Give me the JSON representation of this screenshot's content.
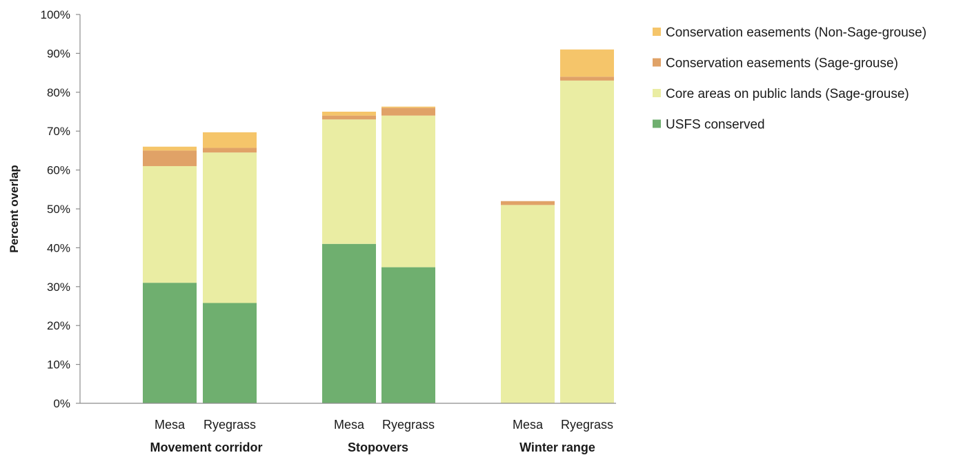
{
  "chart_data": {
    "type": "bar",
    "stacked": true,
    "ylabel": "Percent overlap",
    "ylim": [
      0,
      100
    ],
    "yticks": [
      "0%",
      "10%",
      "20%",
      "30%",
      "40%",
      "50%",
      "60%",
      "70%",
      "80%",
      "90%",
      "100%"
    ],
    "grid": false,
    "legend_position": "right",
    "groups": [
      {
        "name": "Movement corridor",
        "categories": [
          "Mesa",
          "Ryegrass"
        ]
      },
      {
        "name": "Stopovers",
        "categories": [
          "Mesa",
          "Ryegrass"
        ]
      },
      {
        "name": "Winter range",
        "categories": [
          "Mesa",
          "Ryegrass"
        ]
      }
    ],
    "series": [
      {
        "name": "USFS conserved",
        "color": "#6faf6f",
        "values": [
          31,
          25.8,
          41,
          35,
          0,
          0
        ]
      },
      {
        "name": "Core areas on public lands (Sage-grouse)",
        "color": "#eaeda3",
        "values": [
          30,
          38.7,
          32,
          39,
          51,
          83
        ]
      },
      {
        "name": "Conservation easements (Sage-grouse)",
        "color": "#e0a267",
        "values": [
          4,
          1.2,
          1,
          2,
          1,
          1
        ]
      },
      {
        "name": "Conservation easements (Non-Sage-grouse)",
        "color": "#f5c56a",
        "values": [
          1,
          4,
          1,
          0.3,
          0,
          7
        ]
      }
    ],
    "legend_order": [
      3,
      2,
      1,
      0
    ]
  }
}
